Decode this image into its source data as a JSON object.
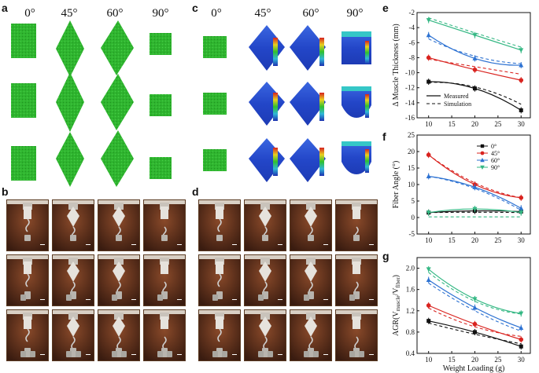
{
  "panel_labels": {
    "a": "a",
    "b": "b",
    "c": "c",
    "d": "d",
    "e": "e",
    "f": "f",
    "g": "g"
  },
  "angles": [
    "0°",
    "45°",
    "60°",
    "90°"
  ],
  "legend_labels": {
    "line_measured": "Measured",
    "line_simulation": "Simulation"
  },
  "colors": {
    "green_shape": "#2fb52f",
    "blue_fea": "#2b4fd6",
    "cyan_fea": "#35c7c7",
    "black": "#111111",
    "red": "#d9231f",
    "blue": "#2d72d2",
    "green": "#35b884"
  },
  "chart_data": [
    {
      "id": "e",
      "type": "line",
      "title": "",
      "xlabel": "",
      "ylabel": "Δ Muscle Thickness (mm)",
      "x": [
        10,
        20,
        30
      ],
      "xticks": [
        10,
        15,
        20,
        25,
        30
      ],
      "yticks": [
        -16,
        -14,
        -12,
        -10,
        -8,
        -6,
        -4,
        -2
      ],
      "ylim": [
        -16,
        -2
      ],
      "legend": [
        "Measured",
        "Simulation"
      ],
      "series": [
        {
          "name": "0°",
          "color": "#111111",
          "measured": [
            -11.2,
            -12.1,
            -15.0
          ],
          "simulation": [
            -11.3,
            -11.9,
            -14.2
          ]
        },
        {
          "name": "45°",
          "color": "#d9231f",
          "measured": [
            -8.0,
            -9.6,
            -11.0
          ],
          "simulation": [
            -8.2,
            -9.2,
            -10.2
          ]
        },
        {
          "name": "60°",
          "color": "#2d72d2",
          "measured": [
            -5.0,
            -8.1,
            -9.0
          ],
          "simulation": [
            -5.5,
            -7.8,
            -8.8
          ]
        },
        {
          "name": "90°",
          "color": "#35b884",
          "measured": [
            -3.0,
            -5.0,
            -7.0
          ],
          "simulation": [
            -2.7,
            -4.7,
            -6.6
          ]
        }
      ]
    },
    {
      "id": "f",
      "type": "line",
      "title": "",
      "xlabel": "",
      "ylabel": "Fiber Angle (°)",
      "x": [
        10,
        20,
        30
      ],
      "xticks": [
        10,
        15,
        20,
        25,
        30
      ],
      "yticks": [
        -5,
        0,
        5,
        10,
        15,
        20,
        25
      ],
      "ylim": [
        -5,
        25
      ],
      "legend": [
        "0°",
        "45°",
        "60°",
        "90°"
      ],
      "series": [
        {
          "name": "0°",
          "color": "#111111",
          "measured": [
            1.5,
            2.0,
            1.8
          ],
          "simulation": [
            1.5,
            1.6,
            1.5
          ]
        },
        {
          "name": "45°",
          "color": "#d9231f",
          "measured": [
            19.0,
            10.0,
            6.0
          ],
          "simulation": [
            19.0,
            10.5,
            6.0
          ]
        },
        {
          "name": "60°",
          "color": "#2d72d2",
          "measured": [
            12.5,
            9.2,
            2.8
          ],
          "simulation": [
            12.5,
            8.8,
            2.2
          ]
        },
        {
          "name": "90°",
          "color": "#35b884",
          "measured": [
            1.5,
            2.6,
            1.5
          ],
          "simulation": [
            0.2,
            0.2,
            0.2
          ]
        }
      ]
    },
    {
      "id": "g",
      "type": "line",
      "title": "",
      "xlabel": "Weight Loading (g)",
      "ylabel": "AGR(V",
      "ylabel_sub1": "muscle",
      "ylabel_mid": "/V",
      "ylabel_sub2": "fiber",
      "ylabel_end": ")",
      "x": [
        10,
        20,
        30
      ],
      "xticks": [
        10,
        15,
        20,
        25,
        30
      ],
      "yticks": [
        0.4,
        0.8,
        1.2,
        1.6,
        2.0
      ],
      "ytick_labels": [
        "0.4",
        "0.8",
        "1.2",
        "1.6",
        "2.0"
      ],
      "ylim": [
        0.4,
        2.2
      ],
      "series": [
        {
          "name": "0°",
          "color": "#111111",
          "measured": [
            1.01,
            0.8,
            0.53
          ],
          "simulation": [
            0.97,
            0.76,
            0.58
          ]
        },
        {
          "name": "45°",
          "color": "#d9231f",
          "measured": [
            1.3,
            0.95,
            0.66
          ],
          "simulation": [
            1.25,
            0.9,
            0.72
          ]
        },
        {
          "name": "60°",
          "color": "#2d72d2",
          "measured": [
            1.78,
            1.26,
            0.88
          ],
          "simulation": [
            1.72,
            1.2,
            0.82
          ]
        },
        {
          "name": "90°",
          "color": "#35b884",
          "measured": [
            1.98,
            1.42,
            1.15
          ],
          "simulation": [
            1.92,
            1.38,
            1.14
          ]
        }
      ]
    }
  ]
}
